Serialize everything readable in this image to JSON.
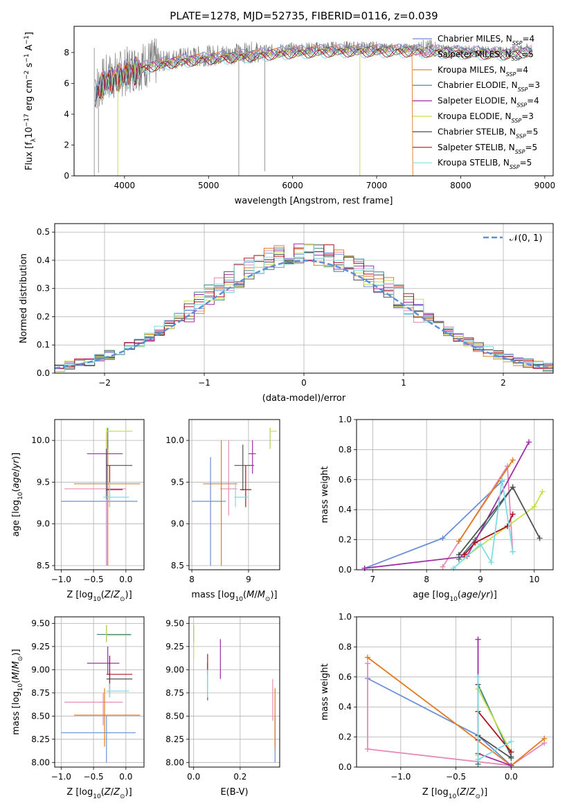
{
  "figure_title": "PLATE=1278, MJD=52735, FIBERID=0116, z=0.039",
  "colors": {
    "Chabrier MILES": "#6b8fd6",
    "Salpeter MILES": "#e58ab8",
    "Kroupa MILES": "#e07a1f",
    "Chabrier ELODIE": "#3f7f7f",
    "Salpeter ELODIE": "#a02ca8",
    "Kroupa ELODIE": "#c4e04a",
    "Chabrier STELIB": "#505050",
    "Salpeter STELIB": "#b01020",
    "Kroupa STELIB": "#7fdce0",
    "data": "#808080",
    "normal": "#5b8fd6"
  },
  "chart_data": [
    {
      "type": "line",
      "name": "spectrum",
      "xlabel": "wavelength [Angstrom, rest frame]",
      "ylabel": "Flux [f_λ 10^-17 erg cm^-2 s^-1 A^-1]",
      "xlim": [
        3400,
        9100
      ],
      "ylim": [
        0,
        9.7
      ],
      "xticks": [
        4000,
        5000,
        6000,
        7000,
        8000,
        9000
      ],
      "yticks": [
        0,
        2,
        4,
        6,
        8
      ],
      "legend": [
        {
          "base": "Chabrier MILES, N",
          "n": "4"
        },
        {
          "base": "Salpeter MILES, N",
          "n": "5"
        },
        {
          "base": "Kroupa MILES, N",
          "n": "4"
        },
        {
          "base": "Chabrier ELODIE, N",
          "n": "3"
        },
        {
          "base": "Salpeter ELODIE, N",
          "n": "4"
        },
        {
          "base": "Kroupa ELODIE, N",
          "n": "3"
        },
        {
          "base": "Chabrier STELIB, N",
          "n": "5"
        },
        {
          "base": "Salpeter STELIB, N",
          "n": "5"
        },
        {
          "base": "Kroupa STELIB, N",
          "n": "5"
        }
      ],
      "legend_sub": "SSP",
      "legend_position": "top-right",
      "continuum": [
        [
          3650,
          5.6
        ],
        [
          3800,
          6.4
        ],
        [
          3950,
          6.6
        ],
        [
          4100,
          7.0
        ],
        [
          4300,
          7.3
        ],
        [
          4600,
          7.6
        ],
        [
          5000,
          7.8
        ],
        [
          5500,
          8.0
        ],
        [
          6000,
          8.2
        ],
        [
          6500,
          8.3
        ],
        [
          7000,
          8.3
        ],
        [
          7400,
          8.3
        ],
        [
          8000,
          8.2
        ],
        [
          8500,
          8.1
        ],
        [
          8850,
          8.3
        ]
      ]
    },
    {
      "type": "step",
      "name": "residual histogram",
      "xlabel": "(data-model)/error",
      "ylabel": "Normed distribution",
      "xlim": [
        -2.5,
        2.5
      ],
      "ylim": [
        0,
        0.53
      ],
      "xticks": [
        -2,
        -1,
        0,
        1,
        2
      ],
      "yticks": [
        0.0,
        0.1,
        0.2,
        0.3,
        0.4,
        0.5
      ],
      "legend": "𝒩(0, 1)",
      "legend_position": "top-right",
      "bin_width": 0.1,
      "bin_start": -2.5
    },
    {
      "type": "errorbar",
      "name": "age vs Z",
      "xlabel": "Z [log10(Z/Z⊙)]",
      "ylabel": "age [log10(age/yr)]",
      "xlim": [
        -1.1,
        0.28
      ],
      "ylim": [
        8.45,
        10.25
      ],
      "xticks": [
        -1.0,
        -0.5,
        0.0
      ],
      "yticks": [
        8.5,
        9.0,
        9.5,
        10.0
      ],
      "points": [
        {
          "s": "Chabrier MILES",
          "x": -0.3,
          "y": 9.27,
          "xe": [
            -1.0,
            0.18
          ],
          "ye": [
            8.5,
            9.8
          ]
        },
        {
          "s": "Salpeter MILES",
          "x": -0.3,
          "y": 9.42,
          "xe": [
            -0.95,
            0.0
          ],
          "ye": [
            8.5,
            10.0
          ]
        },
        {
          "s": "Kroupa MILES",
          "x": -0.28,
          "y": 9.48,
          "xe": [
            -0.8,
            0.22
          ],
          "ye": [
            8.5,
            10.0
          ]
        },
        {
          "s": "Chabrier ELODIE",
          "x": -0.28,
          "y": 10.08,
          "xe": [
            -0.28,
            -0.28
          ],
          "ye": [
            9.9,
            10.15
          ]
        },
        {
          "s": "Salpeter ELODIE",
          "x": -0.3,
          "y": 9.84,
          "xe": [
            -0.6,
            -0.05
          ],
          "ye": [
            9.5,
            10.1
          ]
        },
        {
          "s": "Kroupa ELODIE",
          "x": -0.3,
          "y": 10.11,
          "xe": [
            -0.3,
            0.1
          ],
          "ye": [
            9.9,
            10.15
          ]
        },
        {
          "s": "Chabrier STELIB",
          "x": -0.3,
          "y": 9.7,
          "xe": [
            -0.3,
            0.1
          ],
          "ye": [
            9.3,
            9.9
          ]
        },
        {
          "s": "Salpeter STELIB",
          "x": -0.25,
          "y": 9.41,
          "xe": [
            -0.3,
            -0.05
          ],
          "ye": [
            9.2,
            9.7
          ]
        },
        {
          "s": "Kroupa STELIB",
          "x": -0.25,
          "y": 9.32,
          "xe": [
            -0.35,
            0.05
          ],
          "ye": [
            9.2,
            9.5
          ]
        }
      ]
    },
    {
      "type": "errorbar",
      "name": "age vs mass",
      "xlabel": "mass [log10(M/M⊙)]",
      "ylabel": "",
      "xlim": [
        7.95,
        9.55
      ],
      "ylim": [
        8.45,
        10.25
      ],
      "xticks": [
        8,
        9
      ],
      "yticks": [
        8.5,
        9.0,
        9.5,
        10.0
      ],
      "points": [
        {
          "s": "Chabrier MILES",
          "x": 8.33,
          "y": 9.27,
          "xe": [
            8.0,
            8.6
          ],
          "ye": [
            8.5,
            9.8
          ]
        },
        {
          "s": "Salpeter MILES",
          "x": 8.65,
          "y": 9.42,
          "xe": [
            8.5,
            8.8
          ],
          "ye": [
            9.1,
            10.0
          ]
        },
        {
          "s": "Kroupa MILES",
          "x": 8.52,
          "y": 9.48,
          "xe": [
            8.2,
            8.8
          ],
          "ye": [
            8.5,
            10.0
          ]
        },
        {
          "s": "Chabrier ELODIE",
          "x": 9.38,
          "y": 10.11,
          "xe": [
            9.38,
            9.38
          ],
          "ye": [
            9.9,
            10.15
          ]
        },
        {
          "s": "Salpeter ELODIE",
          "x": 9.07,
          "y": 9.84,
          "xe": [
            9.0,
            9.13
          ],
          "ye": [
            9.6,
            10.0
          ]
        },
        {
          "s": "Kroupa ELODIE",
          "x": 9.38,
          "y": 10.11,
          "xe": [
            9.38,
            9.5
          ],
          "ye": [
            9.9,
            10.15
          ]
        },
        {
          "s": "Chabrier STELIB",
          "x": 8.9,
          "y": 9.7,
          "xe": [
            8.75,
            9.1
          ],
          "ye": [
            9.4,
            9.95
          ]
        },
        {
          "s": "Salpeter STELIB",
          "x": 8.95,
          "y": 9.41,
          "xe": [
            8.85,
            9.05
          ],
          "ye": [
            9.2,
            9.7
          ]
        },
        {
          "s": "Kroupa STELIB",
          "x": 8.77,
          "y": 9.32,
          "xe": [
            8.75,
            9.0
          ],
          "ye": [
            9.2,
            9.5
          ]
        }
      ]
    },
    {
      "type": "line",
      "name": "mass weight vs age",
      "xlabel": "age [log10(age/yr)]",
      "ylabel": "mass weight",
      "xlim": [
        6.7,
        10.35
      ],
      "ylim": [
        0,
        1.0
      ],
      "xticks": [
        7,
        8,
        9,
        10
      ],
      "yticks": [
        0.0,
        0.2,
        0.4,
        0.6,
        0.8,
        1.0
      ],
      "series": [
        {
          "s": "Chabrier MILES",
          "x": [
            6.85,
            8.3,
            9.4
          ],
          "y": [
            0.01,
            0.21,
            0.59
          ]
        },
        {
          "s": "Salpeter MILES",
          "x": [
            8.3,
            9.5,
            9.6
          ],
          "y": [
            0.02,
            0.69,
            0.12
          ]
        },
        {
          "s": "Kroupa MILES",
          "x": [
            8.6,
            9.6
          ],
          "y": [
            0.19,
            0.73
          ]
        },
        {
          "s": "Chabrier ELODIE",
          "x": [
            8.6,
            8.9,
            9.6
          ],
          "y": [
            0.07,
            0.2,
            0.55
          ]
        },
        {
          "s": "Salpeter ELODIE",
          "x": [
            6.85,
            8.75,
            9.9
          ],
          "y": [
            0.01,
            0.09,
            0.85
          ]
        },
        {
          "s": "Kroupa ELODIE",
          "x": [
            8.7,
            10.0,
            10.15
          ],
          "y": [
            0.08,
            0.42,
            0.52
          ]
        },
        {
          "s": "Chabrier STELIB",
          "x": [
            8.6,
            9.6,
            10.1
          ],
          "y": [
            0.1,
            0.55,
            0.21
          ]
        },
        {
          "s": "Salpeter STELIB",
          "x": [
            8.7,
            8.9,
            9.5,
            9.6
          ],
          "y": [
            0.1,
            0.18,
            0.29,
            0.37
          ]
        },
        {
          "s": "Kroupa STELIB",
          "x": [
            8.5,
            9.0,
            9.2,
            9.4,
            9.6
          ],
          "y": [
            0.01,
            0.17,
            0.05,
            0.6,
            0.12
          ]
        }
      ]
    },
    {
      "type": "errorbar",
      "name": "mass vs Z",
      "xlabel": "Z [log10(Z/Z⊙)]",
      "ylabel": "mass [log10(M/M⊙)]",
      "xlim": [
        -1.1,
        0.28
      ],
      "ylim": [
        7.95,
        9.57
      ],
      "xticks": [
        -1.0,
        -0.5,
        0.0
      ],
      "yticks": [
        8.0,
        8.25,
        8.5,
        8.75,
        9.0,
        9.25,
        9.5
      ],
      "points": [
        {
          "s": "Chabrier MILES",
          "x": -0.3,
          "y": 8.32,
          "xe": [
            -1.0,
            0.15
          ],
          "ye": [
            8.0,
            8.5
          ]
        },
        {
          "s": "Salpeter MILES",
          "x": -0.35,
          "y": 8.65,
          "xe": [
            -0.95,
            -0.05
          ],
          "ye": [
            8.4,
            8.75
          ]
        },
        {
          "s": "Kroupa MILES",
          "x": -0.33,
          "y": 8.51,
          "xe": [
            -0.8,
            0.22
          ],
          "ye": [
            8.17,
            8.8
          ]
        },
        {
          "s": "Chabrier ELODIE",
          "x": -0.3,
          "y": 9.38,
          "xe": [
            -0.45,
            0.08
          ],
          "ye": [
            9.3,
            9.48
          ]
        },
        {
          "s": "Salpeter ELODIE",
          "x": -0.28,
          "y": 9.07,
          "xe": [
            -0.6,
            -0.1
          ],
          "ye": [
            8.95,
            9.25
          ]
        },
        {
          "s": "Kroupa ELODIE",
          "x": -0.3,
          "y": 9.37,
          "xe": [
            -0.3,
            0.08
          ],
          "ye": [
            9.3,
            9.48
          ]
        },
        {
          "s": "Chabrier STELIB",
          "x": -0.25,
          "y": 8.9,
          "xe": [
            -0.3,
            0.1
          ],
          "ye": [
            8.7,
            9.15
          ]
        },
        {
          "s": "Salpeter STELIB",
          "x": -0.25,
          "y": 8.95,
          "xe": [
            -0.3,
            0.1
          ],
          "ye": [
            8.75,
            9.15
          ]
        },
        {
          "s": "Kroupa STELIB",
          "x": -0.25,
          "y": 8.77,
          "xe": [
            -0.3,
            0.05
          ],
          "ye": [
            8.7,
            8.85
          ]
        }
      ]
    },
    {
      "type": "errorbar",
      "name": "mass vs E(B-V)",
      "xlabel": "E(B-V)",
      "ylabel": "",
      "xlim": [
        -0.02,
        0.37
      ],
      "ylim": [
        7.95,
        9.57
      ],
      "xticks": [
        0.0,
        0.2
      ],
      "yticks": [
        8.0,
        8.25,
        8.5,
        8.75,
        9.0,
        9.25,
        9.5
      ],
      "points": [
        {
          "s": "Chabrier MILES",
          "x": 0.35,
          "y": 8.3,
          "xe": [
            0.35,
            0.35
          ],
          "ye": [
            8.0,
            8.5
          ]
        },
        {
          "s": "Salpeter MILES",
          "x": 0.34,
          "y": 8.65,
          "xe": [
            0.34,
            0.34
          ],
          "ye": [
            8.45,
            8.9
          ]
        },
        {
          "s": "Kroupa MILES",
          "x": 0.35,
          "y": 8.51,
          "xe": [
            0.35,
            0.35
          ],
          "ye": [
            8.15,
            8.8
          ]
        },
        {
          "s": "Chabrier ELODIE",
          "x": 0.0,
          "y": 9.38,
          "xe": [
            0.0,
            0.0
          ],
          "ye": [
            9.3,
            9.48
          ]
        },
        {
          "s": "Salpeter ELODIE",
          "x": 0.115,
          "y": 9.1,
          "xe": [
            0.115,
            0.115
          ],
          "ye": [
            8.9,
            9.33
          ]
        },
        {
          "s": "Kroupa ELODIE",
          "x": 0.0,
          "y": 9.3,
          "xe": [
            0.0,
            0.0
          ],
          "ye": [
            9.12,
            9.48
          ]
        },
        {
          "s": "Chabrier STELIB",
          "x": 0.06,
          "y": 8.9,
          "xe": [
            0.06,
            0.06
          ],
          "ye": [
            8.67,
            9.07
          ]
        },
        {
          "s": "Salpeter STELIB",
          "x": 0.06,
          "y": 9.05,
          "xe": [
            0.06,
            0.06
          ],
          "ye": [
            8.95,
            9.17
          ]
        },
        {
          "s": "Kroupa STELIB",
          "x": 0.06,
          "y": 8.85,
          "xe": [
            0.06,
            0.06
          ],
          "ye": [
            8.7,
            9.0
          ]
        }
      ]
    },
    {
      "type": "line",
      "name": "mass weight vs Z",
      "xlabel": "Z [log10(Z/Z⊙)]",
      "ylabel": "mass weight",
      "xlim": [
        -1.4,
        0.38
      ],
      "ylim": [
        0,
        1.0
      ],
      "xticks": [
        -1.0,
        -0.5,
        0.0
      ],
      "yticks": [
        0.0,
        0.2,
        0.4,
        0.6,
        0.8,
        1.0
      ],
      "series": [
        {
          "s": "Chabrier MILES",
          "x": [
            -1.3,
            -0.3,
            0.0
          ],
          "y": [
            0.59,
            0.21,
            0.01
          ]
        },
        {
          "s": "Salpeter MILES",
          "x": [
            -1.3,
            -1.3,
            0.0,
            0.3
          ],
          "y": [
            0.69,
            0.12,
            0.01,
            0.16
          ]
        },
        {
          "s": "Kroupa MILES",
          "x": [
            -1.3,
            0.0,
            0.3
          ],
          "y": [
            0.73,
            0.01,
            0.19
          ]
        },
        {
          "s": "Chabrier ELODIE",
          "x": [
            -0.3,
            -0.3,
            0.0
          ],
          "y": [
            0.02,
            0.55,
            0.07
          ]
        },
        {
          "s": "Salpeter ELODIE",
          "x": [
            -0.3,
            -0.3,
            0.0
          ],
          "y": [
            0.85,
            0.09,
            0.01
          ]
        },
        {
          "s": "Kroupa ELODIE",
          "x": [
            -0.3,
            -0.3,
            0.0
          ],
          "y": [
            0.08,
            0.52,
            0.1
          ]
        },
        {
          "s": "Chabrier STELIB",
          "x": [
            -0.3,
            -0.3,
            0.0
          ],
          "y": [
            0.55,
            0.21,
            0.06
          ]
        },
        {
          "s": "Salpeter STELIB",
          "x": [
            -0.3,
            -0.3,
            0.0
          ],
          "y": [
            0.18,
            0.37,
            0.1
          ]
        },
        {
          "s": "Kroupa STELIB",
          "x": [
            -0.3,
            -0.3,
            0.0
          ],
          "y": [
            0.6,
            0.05,
            0.17
          ]
        }
      ]
    }
  ]
}
